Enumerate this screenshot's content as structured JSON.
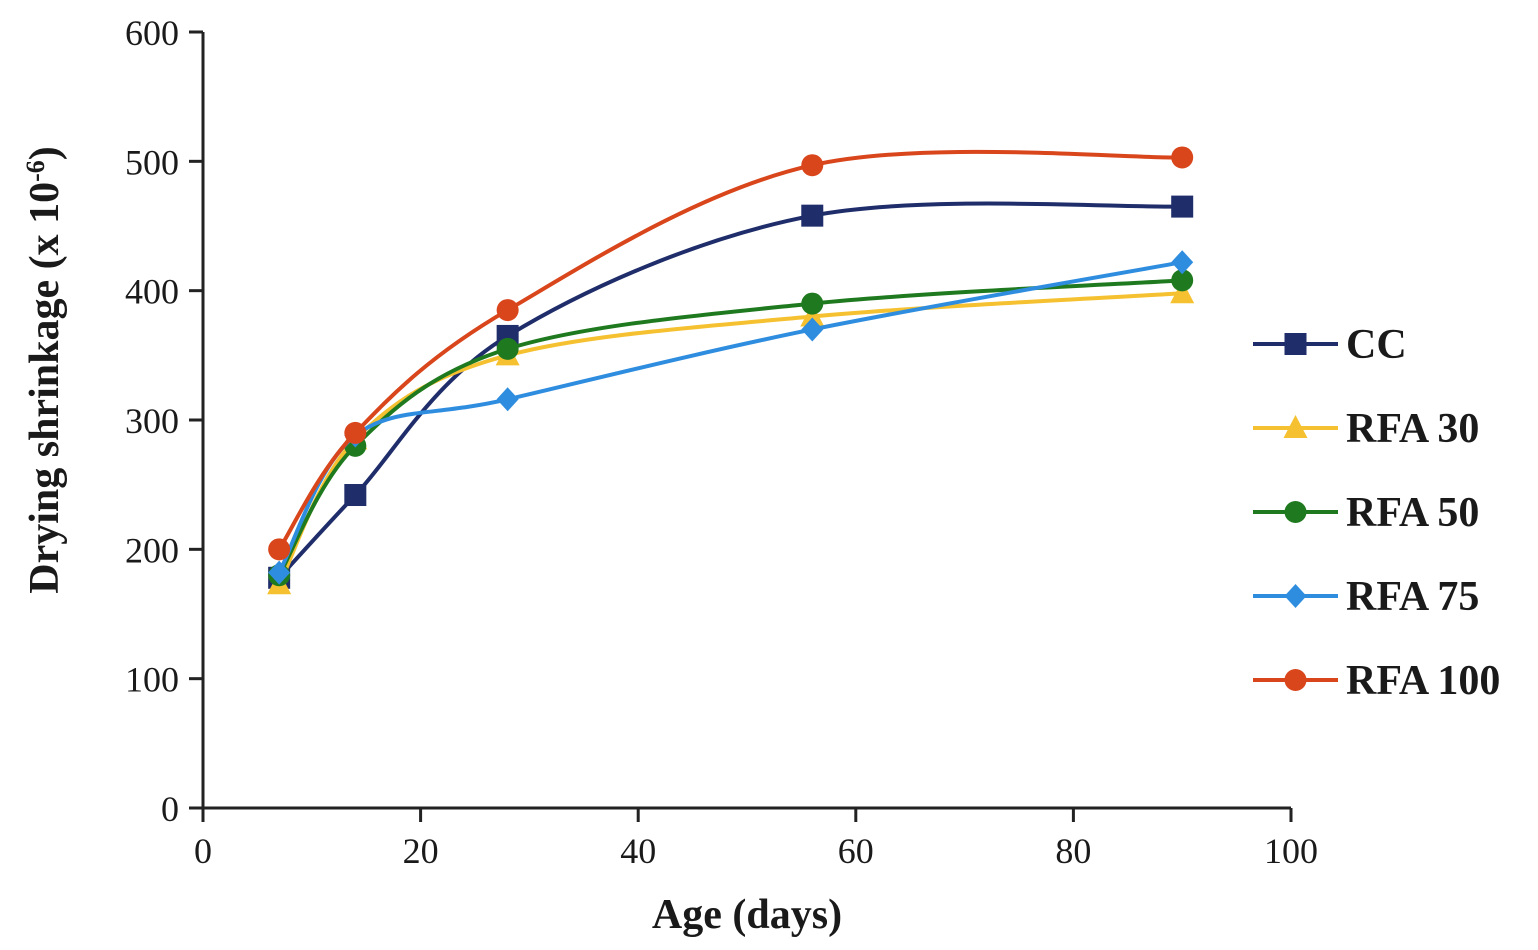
{
  "chart_data": {
    "type": "line",
    "title": "",
    "xlabel": "Age (days)",
    "ylabel": "Drying shrinkage (x 10",
    "ylabel_superscript": "-6",
    "ylabel_suffix": ")",
    "xlim": [
      0,
      100
    ],
    "ylim": [
      0,
      600
    ],
    "xticks": [
      0,
      20,
      40,
      60,
      80,
      100
    ],
    "yticks": [
      0,
      100,
      200,
      300,
      400,
      500,
      600
    ],
    "grid": false,
    "smooth": true,
    "legend_position": "right",
    "x": [
      7,
      14,
      28,
      56,
      90
    ],
    "series": [
      {
        "name": "CC",
        "values": [
          178,
          242,
          365,
          458,
          465
        ],
        "color": "#1f2d6b",
        "marker": "square"
      },
      {
        "name": "RFA 30",
        "values": [
          173,
          285,
          350,
          380,
          398
        ],
        "color": "#f5c130",
        "marker": "triangle"
      },
      {
        "name": "RFA 50",
        "values": [
          180,
          280,
          355,
          390,
          408
        ],
        "color": "#1f7a1f",
        "marker": "circle"
      },
      {
        "name": "RFA 75",
        "values": [
          182,
          288,
          316,
          370,
          422
        ],
        "color": "#2f8de0",
        "marker": "diamond"
      },
      {
        "name": "RFA 100",
        "values": [
          200,
          290,
          385,
          497,
          503
        ],
        "color": "#d9461c",
        "marker": "circle"
      }
    ]
  }
}
